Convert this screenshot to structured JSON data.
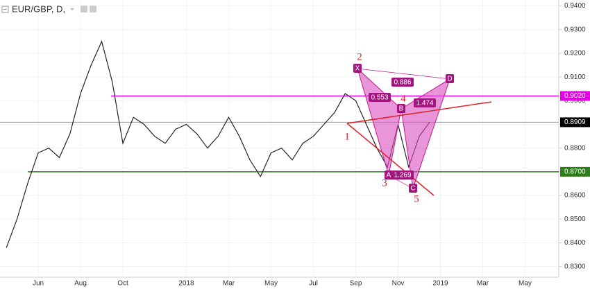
{
  "chart_data": {
    "type": "line",
    "title": "EUR/GBP, D,",
    "categories": [
      null,
      null,
      null,
      "Jun",
      null,
      null,
      null,
      "Aug",
      null,
      null,
      null,
      "Oct",
      null,
      null,
      null,
      null,
      null,
      "2018",
      null,
      null,
      null,
      "Mar",
      null,
      null,
      null,
      "May",
      null,
      null,
      null,
      "Jul",
      null,
      null,
      null,
      "Sep",
      null,
      null,
      null,
      "Nov",
      null,
      null,
      null,
      "2019",
      null,
      null,
      null,
      "Mar",
      null,
      null,
      null,
      "May"
    ],
    "values": [
      0.838,
      0.85,
      0.865,
      0.878,
      0.88,
      0.876,
      0.886,
      0.903,
      0.915,
      0.925,
      0.908,
      0.882,
      0.893,
      0.89,
      0.885,
      0.882,
      0.888,
      0.89,
      0.886,
      0.88,
      0.885,
      0.893,
      0.885,
      0.875,
      0.868,
      0.878,
      0.88,
      0.875,
      0.882,
      0.885,
      0.89,
      0.895,
      0.903,
      0.9,
      0.89,
      0.88,
      0.872,
      0.89,
      0.872,
      0.885,
      0.891,
      null,
      null,
      null,
      null,
      null,
      null,
      null,
      null,
      null
    ],
    "color": "#222222",
    "ylim": [
      0.8255,
      0.9425
    ],
    "yticks": [
      {
        "value": 0.83,
        "label": "0.8300"
      },
      {
        "value": 0.84,
        "label": "0.8400"
      },
      {
        "value": 0.85,
        "label": "0.8500"
      },
      {
        "value": 0.86,
        "label": "0.8600"
      },
      {
        "value": 0.87,
        "label": "0.8700"
      },
      {
        "value": 0.88,
        "label": "0.8800"
      },
      {
        "value": 0.89,
        "label": "0.8900"
      },
      {
        "value": 0.9,
        "label": "0.9000"
      },
      {
        "value": 0.91,
        "label": "0.9100"
      },
      {
        "value": 0.92,
        "label": "0.9200"
      },
      {
        "value": 0.93,
        "label": "0.9300"
      },
      {
        "value": 0.94,
        "label": "0.9400"
      }
    ],
    "grid": true,
    "hlines": [
      {
        "value": 0.902,
        "label": "0.9020",
        "color": "#e600e6"
      },
      {
        "value": 0.8909,
        "label": "0.8909",
        "color": "#999999"
      },
      {
        "value": 0.87,
        "label": "0.8700",
        "color": "#2e7d1a"
      }
    ],
    "pattern_points": [
      "X",
      "A",
      "B",
      "C",
      "D"
    ],
    "pattern_ratios": [
      0.886,
      0.553,
      1.474,
      1.269
    ],
    "waves": [
      1,
      2,
      3,
      4,
      5
    ]
  }
}
